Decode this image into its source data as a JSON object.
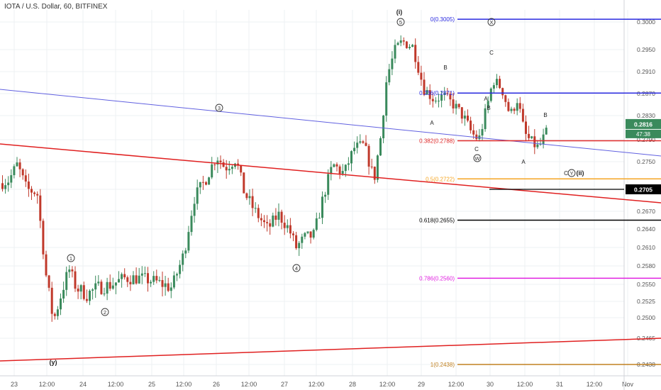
{
  "header": {
    "title": "IOTA / U.S. Dollar, 60, BITFINEX"
  },
  "chart_data": {
    "type": "candlestick",
    "y_range": [
      0.241,
      0.3025
    ],
    "y_ticks": [
      0.3,
      0.295,
      0.291,
      0.287,
      0.283,
      0.279,
      0.275,
      0.2705,
      0.267,
      0.264,
      0.261,
      0.258,
      0.255,
      0.2525,
      0.25,
      0.2465,
      0.2438
    ],
    "y_tick_labels": [
      "0.3000",
      "0.2950",
      "0.2910",
      "0.2870",
      "0.2830",
      "0.2790",
      "0.2750",
      "0.2705",
      "0.2670",
      "0.2640",
      "0.2610",
      "0.2580",
      "0.2550",
      "0.2525",
      "0.2500",
      "0.2465",
      "0.2438"
    ],
    "x_labels": [
      "23",
      "12:00",
      "24",
      "12:00",
      "25",
      "12:00",
      "26",
      "12:00",
      "27",
      "12:00",
      "28",
      "12:00",
      "29",
      "12:00",
      "30",
      "12:00",
      "31",
      "12:00",
      "Nov"
    ],
    "current_price": "0.2816",
    "countdown": "47:38",
    "marked_level": "0.2705",
    "fib_levels": [
      {
        "label": "0(0.3005)",
        "value": 0.3005,
        "color": "#2a2ae0"
      },
      {
        "label": "0.236(0.2871)",
        "value": 0.2871,
        "color": "#2a2ae0"
      },
      {
        "label": "0.382(0.2788)",
        "value": 0.2788,
        "color": "#e02a2a"
      },
      {
        "label": "0.5(0.2722)",
        "value": 0.2722,
        "color": "#f5a623"
      },
      {
        "label": "0.618(0.2655)",
        "value": 0.2655,
        "color": "#000000"
      },
      {
        "label": "0.786(0.2560)",
        "value": 0.256,
        "color": "#e020e0"
      },
      {
        "label": "1(0.2438)",
        "value": 0.2438,
        "color": "#c08020"
      }
    ],
    "wave_labels": [
      {
        "text": "1",
        "circled": true
      },
      {
        "text": "2",
        "circled": true
      },
      {
        "text": "3",
        "circled": true
      },
      {
        "text": "4",
        "circled": true
      },
      {
        "text": "5",
        "circled": true
      },
      {
        "text": "(y)",
        "circled": false
      },
      {
        "text": "(i)",
        "circled": false
      },
      {
        "text": "X",
        "circled": true
      },
      {
        "text": "C",
        "circled": false
      },
      {
        "text": "B",
        "circled": false
      },
      {
        "text": "A",
        "circled": false
      },
      {
        "text": "A",
        "circled": false
      },
      {
        "text": "B",
        "circled": false
      },
      {
        "text": "C",
        "circled": false
      },
      {
        "text": "W",
        "circled": true
      },
      {
        "text": "A",
        "circled": false
      },
      {
        "text": "B",
        "circled": false
      },
      {
        "text": "C",
        "circled": false
      },
      {
        "text": "Y",
        "circled": true
      },
      {
        "text": "(ii)",
        "circled": false
      }
    ],
    "colors": {
      "up": "#3a8a5c",
      "down": "#c0392b",
      "grid": "#eef0f3",
      "axis_text": "#555555"
    }
  }
}
